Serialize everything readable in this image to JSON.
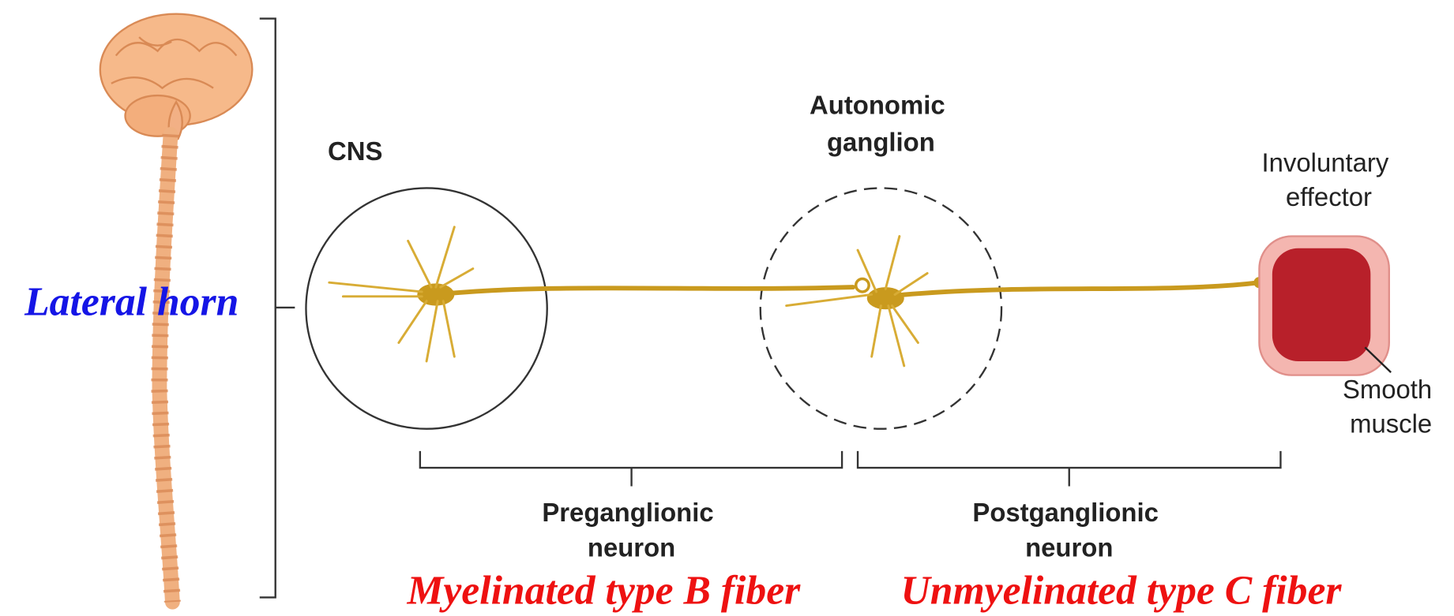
{
  "labels": {
    "lateral_horn": "Lateral horn",
    "cns": "CNS",
    "ganglion": [
      "Autonomic",
      "ganglion"
    ],
    "effector": [
      "Involuntary",
      "effector"
    ],
    "smooth_muscle": [
      "Smooth",
      "muscle"
    ],
    "preganglionic": [
      "Preganglionic",
      "neuron"
    ],
    "postganglionic": [
      "Postganglionic",
      "neuron"
    ],
    "myelinated": "Myelinated type B fiber",
    "unmyelinated": "Unmyelinated type C fiber"
  }
}
